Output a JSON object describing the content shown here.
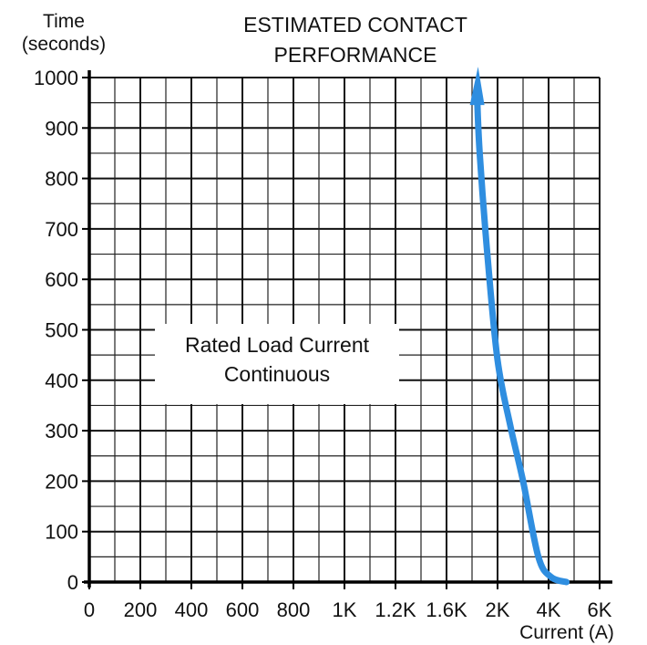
{
  "chart_data": {
    "type": "line",
    "title_lines": [
      "ESTIMATED CONTACT",
      "PERFORMANCE"
    ],
    "ylabel_lines": [
      "Time",
      "(seconds)"
    ],
    "xlabel": "Current (A)",
    "x_ticks": [
      "0",
      "200",
      "400",
      "600",
      "800",
      "1K",
      "1.2K",
      "1.6K",
      "2K",
      "4K",
      "6K"
    ],
    "y_ticks": [
      "0",
      "100",
      "200",
      "300",
      "400",
      "500",
      "600",
      "700",
      "800",
      "900",
      "1000"
    ],
    "ylim": [
      0,
      1000
    ],
    "grid": true,
    "annotation_lines": [
      "Rated Load Current",
      "Continuous"
    ],
    "series": [
      {
        "color": "#2f8ee0",
        "arrow": "up",
        "points": [
          {
            "x_tick_pos": 9.35,
            "y": 0
          },
          {
            "x_tick_pos": 9.05,
            "y": 10
          },
          {
            "x_tick_pos": 8.8,
            "y": 50
          },
          {
            "x_tick_pos": 8.5,
            "y": 200
          },
          {
            "x_tick_pos": 8.25,
            "y": 310
          },
          {
            "x_tick_pos": 8.0,
            "y": 440
          },
          {
            "x_tick_pos": 7.8,
            "y": 650
          },
          {
            "x_tick_pos": 7.65,
            "y": 850
          },
          {
            "x_tick_pos": 7.6,
            "y": 960
          }
        ]
      }
    ]
  }
}
